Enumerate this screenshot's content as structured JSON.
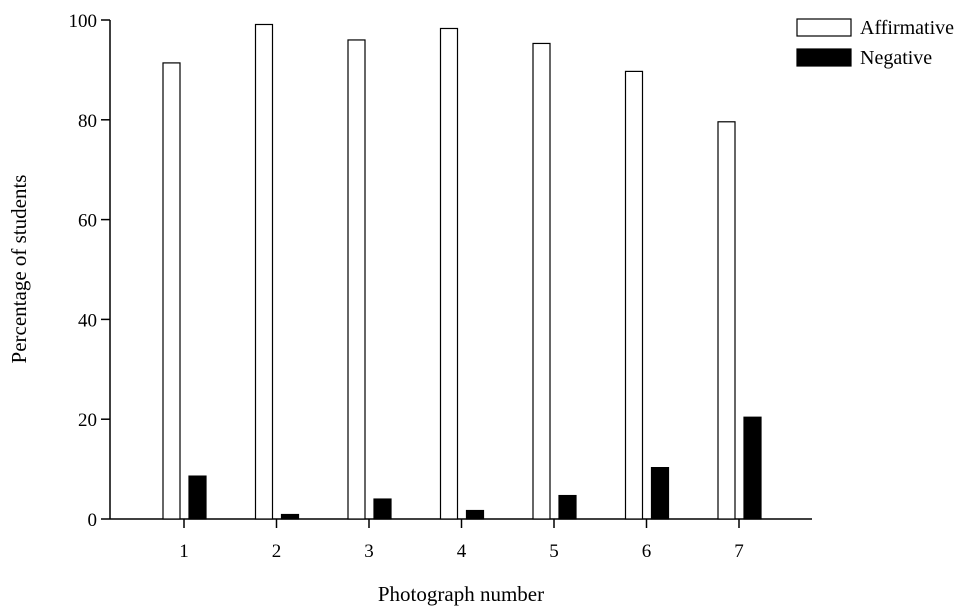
{
  "chart_data": {
    "type": "bar",
    "xlabel": "Photograph number",
    "ylabel": "Percentage of students",
    "ylim": [
      0,
      100
    ],
    "yticks": [
      0,
      20,
      40,
      60,
      80,
      100
    ],
    "categories": [
      "1",
      "2",
      "3",
      "4",
      "5",
      "6",
      "7"
    ],
    "series": [
      {
        "name": "Affirmative",
        "fill": "#ffffff",
        "stroke": "#000000",
        "values": [
          91.4,
          99.1,
          96.0,
          98.3,
          95.3,
          89.7,
          79.6
        ]
      },
      {
        "name": "Negative",
        "fill": "#000000",
        "stroke": "#000000",
        "values": [
          8.6,
          0.9,
          4.0,
          1.7,
          4.7,
          10.3,
          20.4
        ]
      }
    ],
    "grid": false,
    "legend": "top-right"
  }
}
